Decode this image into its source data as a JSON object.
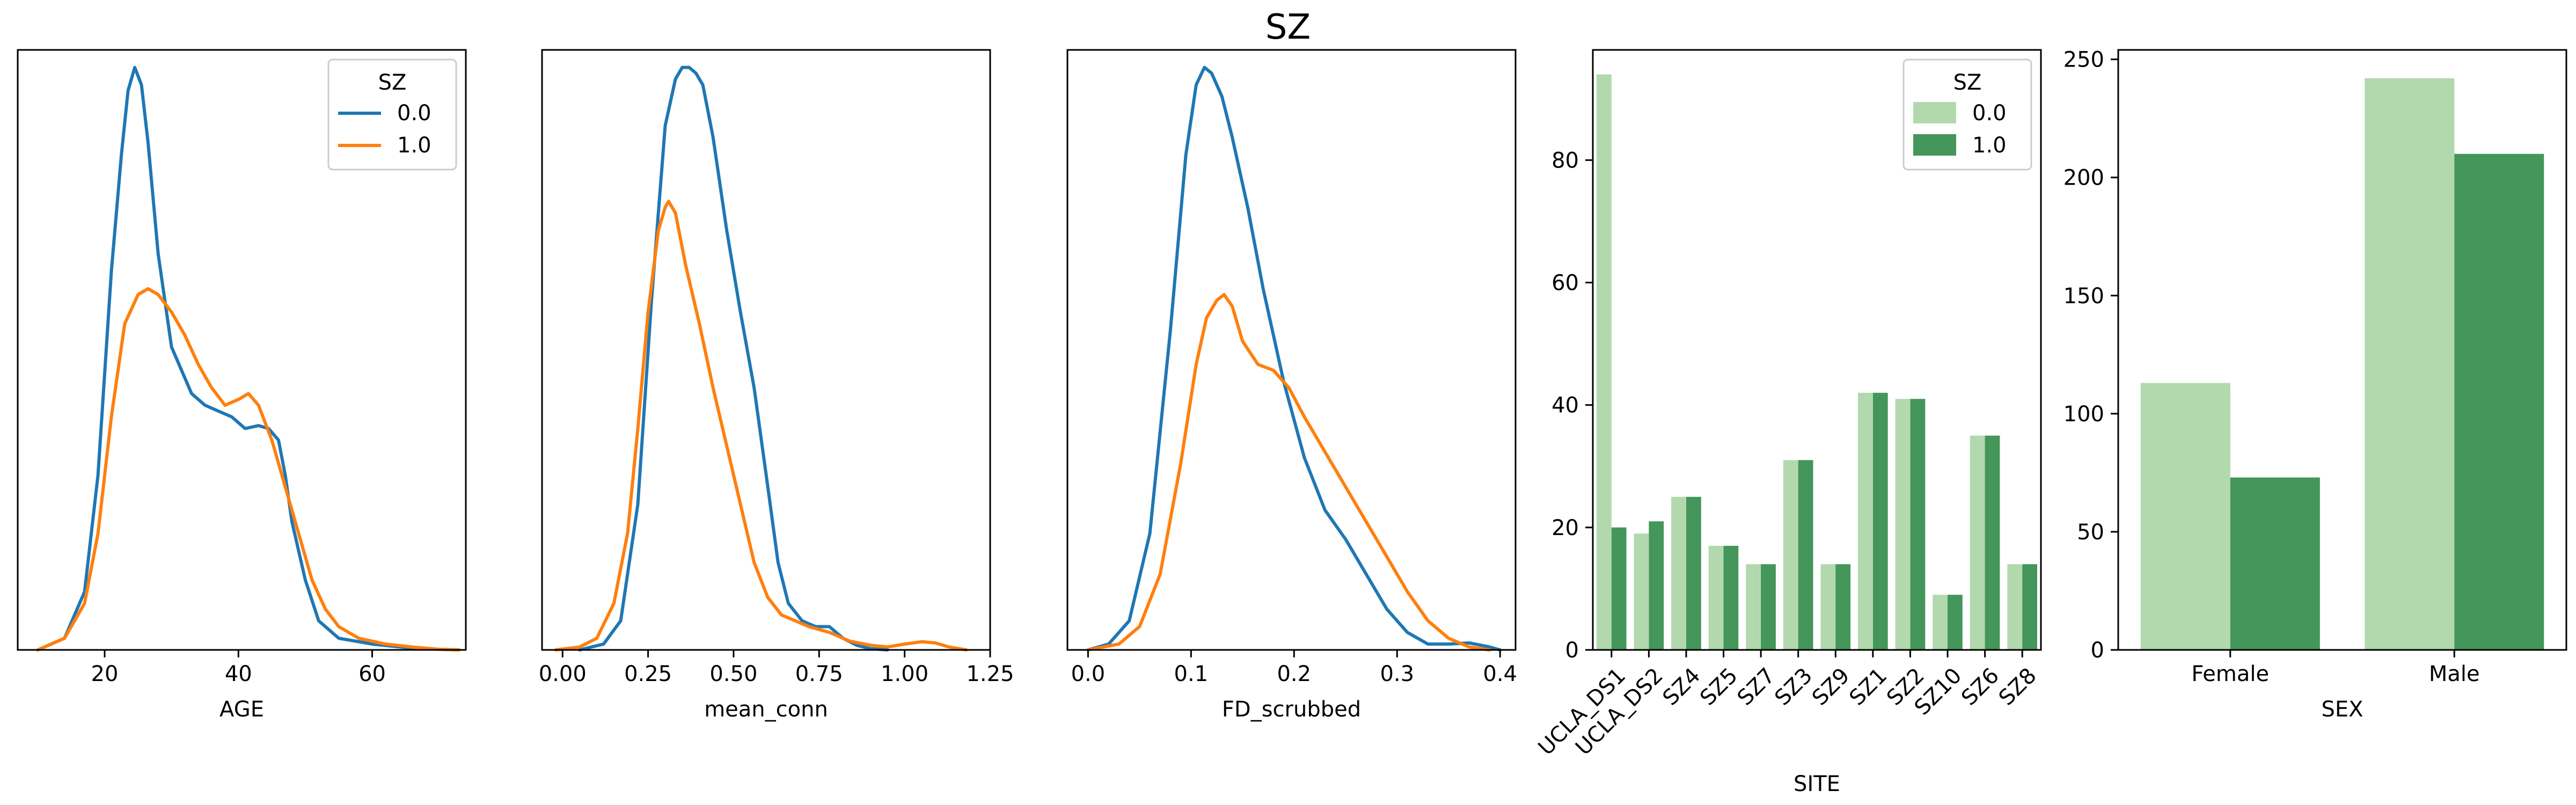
{
  "figure_title": "SZ",
  "colors": {
    "sz0_line": "#1f77b4",
    "sz1_line": "#ff7f0e",
    "sz0_bar": "#b2d9ad",
    "sz1_bar": "#44965a"
  },
  "chart_data": [
    {
      "type": "line",
      "subtype": "kde",
      "xlabel": "AGE",
      "xlim": [
        7,
        74
      ],
      "ylim": [
        0,
        1.03
      ],
      "xticks": [
        "20",
        "40",
        "60"
      ],
      "xtick_values": [
        20,
        40,
        60
      ],
      "legend": {
        "title": "SZ",
        "entries": [
          "0.0",
          "1.0"
        ],
        "position": "top-right"
      },
      "series": [
        {
          "name": "0.0",
          "x": [
            10,
            14,
            17,
            19,
            21,
            22.5,
            23.5,
            24.5,
            25.5,
            26.5,
            28,
            30,
            33,
            35,
            37,
            39,
            41,
            43,
            44.5,
            46,
            47,
            48,
            50,
            52,
            55,
            60,
            65,
            70,
            73
          ],
          "y": [
            0.0,
            0.02,
            0.1,
            0.3,
            0.65,
            0.85,
            0.96,
            1.0,
            0.97,
            0.87,
            0.68,
            0.52,
            0.44,
            0.42,
            0.41,
            0.4,
            0.38,
            0.385,
            0.38,
            0.36,
            0.3,
            0.22,
            0.12,
            0.05,
            0.02,
            0.01,
            0.004,
            0.001,
            0.0
          ]
        },
        {
          "name": "1.0",
          "x": [
            10,
            14,
            17,
            19,
            21,
            23,
            25,
            26.5,
            28,
            30,
            32,
            34,
            36,
            38,
            40,
            41.5,
            43,
            45,
            47,
            49,
            51,
            53,
            55,
            58,
            62,
            66,
            70,
            73
          ],
          "y": [
            0.0,
            0.02,
            0.08,
            0.2,
            0.4,
            0.56,
            0.61,
            0.62,
            0.61,
            0.58,
            0.54,
            0.49,
            0.45,
            0.42,
            0.43,
            0.44,
            0.42,
            0.36,
            0.28,
            0.2,
            0.12,
            0.07,
            0.04,
            0.02,
            0.01,
            0.005,
            0.001,
            0.0
          ]
        }
      ]
    },
    {
      "type": "line",
      "subtype": "kde",
      "xlabel": "mean_conn",
      "xlim": [
        -0.06,
        1.25
      ],
      "ylim": [
        0,
        1.03
      ],
      "xticks": [
        "0.00",
        "0.25",
        "0.50",
        "0.75",
        "1.00",
        "1.25"
      ],
      "xtick_values": [
        0,
        0.25,
        0.5,
        0.75,
        1.0,
        1.25
      ],
      "series": [
        {
          "name": "0.0",
          "x": [
            0.05,
            0.12,
            0.17,
            0.22,
            0.26,
            0.3,
            0.33,
            0.35,
            0.37,
            0.39,
            0.41,
            0.44,
            0.48,
            0.52,
            0.56,
            0.6,
            0.63,
            0.66,
            0.7,
            0.74,
            0.78,
            0.82,
            0.86,
            0.9,
            0.95
          ],
          "y": [
            0.0,
            0.01,
            0.05,
            0.25,
            0.6,
            0.9,
            0.98,
            1.0,
            1.0,
            0.99,
            0.97,
            0.88,
            0.72,
            0.58,
            0.45,
            0.28,
            0.15,
            0.08,
            0.05,
            0.04,
            0.04,
            0.02,
            0.008,
            0.002,
            0.0
          ]
        },
        {
          "name": "1.0",
          "x": [
            -0.02,
            0.05,
            0.1,
            0.15,
            0.19,
            0.22,
            0.25,
            0.28,
            0.3,
            0.31,
            0.33,
            0.36,
            0.4,
            0.44,
            0.48,
            0.52,
            0.56,
            0.6,
            0.64,
            0.68,
            0.72,
            0.78,
            0.84,
            0.9,
            0.95,
            1.0,
            1.05,
            1.09,
            1.13,
            1.18
          ],
          "y": [
            0.0,
            0.005,
            0.02,
            0.08,
            0.2,
            0.38,
            0.58,
            0.72,
            0.76,
            0.77,
            0.75,
            0.66,
            0.56,
            0.45,
            0.35,
            0.25,
            0.15,
            0.09,
            0.06,
            0.05,
            0.04,
            0.03,
            0.015,
            0.008,
            0.005,
            0.01,
            0.014,
            0.012,
            0.005,
            0.0
          ]
        }
      ]
    },
    {
      "type": "line",
      "subtype": "kde",
      "xlabel": "FD_scrubbed",
      "xlim": [
        -0.02,
        0.415
      ],
      "ylim": [
        0,
        1.03
      ],
      "xticks": [
        "0.0",
        "0.1",
        "0.2",
        "0.3",
        "0.4"
      ],
      "xtick_values": [
        0,
        0.1,
        0.2,
        0.3,
        0.4
      ],
      "series": [
        {
          "name": "0.0",
          "x": [
            0.0,
            0.02,
            0.04,
            0.06,
            0.08,
            0.095,
            0.105,
            0.113,
            0.12,
            0.13,
            0.14,
            0.155,
            0.17,
            0.19,
            0.21,
            0.23,
            0.25,
            0.27,
            0.29,
            0.31,
            0.33,
            0.35,
            0.37,
            0.39,
            0.4
          ],
          "y": [
            0.0,
            0.01,
            0.05,
            0.2,
            0.55,
            0.85,
            0.97,
            1.0,
            0.99,
            0.95,
            0.88,
            0.76,
            0.62,
            0.46,
            0.33,
            0.24,
            0.19,
            0.13,
            0.07,
            0.03,
            0.01,
            0.01,
            0.012,
            0.005,
            0.0
          ]
        },
        {
          "name": "1.0",
          "x": [
            0.0,
            0.03,
            0.05,
            0.07,
            0.09,
            0.105,
            0.115,
            0.125,
            0.132,
            0.14,
            0.15,
            0.165,
            0.18,
            0.195,
            0.21,
            0.23,
            0.25,
            0.27,
            0.29,
            0.31,
            0.33,
            0.35,
            0.37,
            0.39
          ],
          "y": [
            0.0,
            0.01,
            0.04,
            0.13,
            0.32,
            0.49,
            0.57,
            0.6,
            0.61,
            0.59,
            0.53,
            0.49,
            0.48,
            0.45,
            0.4,
            0.34,
            0.28,
            0.22,
            0.16,
            0.1,
            0.05,
            0.02,
            0.005,
            0.0
          ]
        }
      ]
    },
    {
      "type": "bar",
      "xlabel": "SITE",
      "ylim": [
        0,
        98
      ],
      "yticks": [
        0,
        20,
        40,
        60,
        80
      ],
      "categories": [
        "UCLA_DS1",
        "UCLA_DS2",
        "SZ4",
        "SZ5",
        "SZ7",
        "SZ3",
        "SZ9",
        "SZ1",
        "SZ2",
        "SZ10",
        "SZ6",
        "SZ8"
      ],
      "legend": {
        "title": "SZ",
        "entries": [
          "0.0",
          "1.0"
        ],
        "position": "top-right"
      },
      "series": [
        {
          "name": "0.0",
          "values": [
            94,
            19,
            25,
            17,
            14,
            31,
            14,
            42,
            41,
            9,
            35,
            14
          ]
        },
        {
          "name": "1.0",
          "values": [
            20,
            21,
            25,
            17,
            14,
            31,
            14,
            42,
            41,
            9,
            35,
            14
          ]
        }
      ]
    },
    {
      "type": "bar",
      "xlabel": "SEX",
      "ylim": [
        0,
        254
      ],
      "yticks": [
        0,
        50,
        100,
        150,
        200,
        250
      ],
      "categories": [
        "Female",
        "Male"
      ],
      "series": [
        {
          "name": "0.0",
          "values": [
            113,
            242
          ]
        },
        {
          "name": "1.0",
          "values": [
            73,
            210
          ]
        }
      ]
    }
  ]
}
